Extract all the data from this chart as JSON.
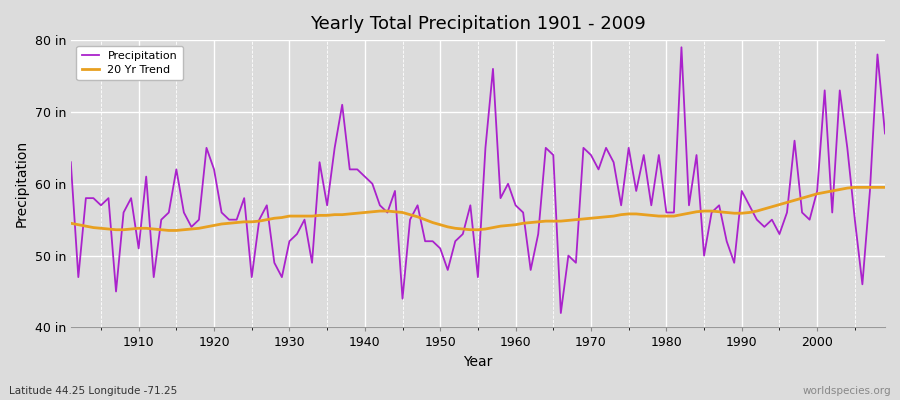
{
  "title": "Yearly Total Precipitation 1901 - 2009",
  "xlabel": "Year",
  "ylabel": "Precipitation",
  "subtitle": "Latitude 44.25 Longitude -71.25",
  "watermark": "worldspecies.org",
  "ylim": [
    40,
    80
  ],
  "yticks": [
    40,
    50,
    60,
    70,
    80
  ],
  "ytick_labels": [
    "40 in",
    "50 in",
    "60 in",
    "70 in",
    "80 in"
  ],
  "bg_color": "#dcdcdc",
  "precip_color": "#aa22cc",
  "trend_color": "#e8a020",
  "years": [
    1901,
    1902,
    1903,
    1904,
    1905,
    1906,
    1907,
    1908,
    1909,
    1910,
    1911,
    1912,
    1913,
    1914,
    1915,
    1916,
    1917,
    1918,
    1919,
    1920,
    1921,
    1922,
    1923,
    1924,
    1925,
    1926,
    1927,
    1928,
    1929,
    1930,
    1931,
    1932,
    1933,
    1934,
    1935,
    1936,
    1937,
    1938,
    1939,
    1940,
    1941,
    1942,
    1943,
    1944,
    1945,
    1946,
    1947,
    1948,
    1949,
    1950,
    1951,
    1952,
    1953,
    1954,
    1955,
    1956,
    1957,
    1958,
    1959,
    1960,
    1961,
    1962,
    1963,
    1964,
    1965,
    1966,
    1967,
    1968,
    1969,
    1970,
    1971,
    1972,
    1973,
    1974,
    1975,
    1976,
    1977,
    1978,
    1979,
    1980,
    1981,
    1982,
    1983,
    1984,
    1985,
    1986,
    1987,
    1988,
    1989,
    1990,
    1991,
    1992,
    1993,
    1994,
    1995,
    1996,
    1997,
    1998,
    1999,
    2000,
    2001,
    2002,
    2003,
    2004,
    2005,
    2006,
    2007,
    2008,
    2009
  ],
  "precip": [
    63,
    47,
    58,
    58,
    57,
    58,
    45,
    56,
    58,
    51,
    61,
    47,
    55,
    56,
    62,
    56,
    54,
    55,
    65,
    62,
    56,
    55,
    55,
    58,
    47,
    55,
    57,
    49,
    47,
    52,
    53,
    55,
    49,
    63,
    57,
    65,
    71,
    62,
    62,
    61,
    60,
    57,
    56,
    59,
    44,
    55,
    57,
    52,
    52,
    51,
    48,
    52,
    53,
    57,
    47,
    65,
    76,
    58,
    60,
    57,
    56,
    48,
    53,
    65,
    64,
    42,
    50,
    49,
    65,
    64,
    62,
    65,
    63,
    57,
    65,
    59,
    64,
    57,
    64,
    56,
    56,
    79,
    57,
    64,
    50,
    56,
    57,
    52,
    49,
    59,
    57,
    55,
    54,
    55,
    53,
    56,
    66,
    56,
    55,
    59,
    73,
    56,
    73,
    65,
    55,
    46,
    59,
    78,
    67
  ],
  "trend": [
    54.5,
    54.3,
    54.1,
    53.9,
    53.8,
    53.7,
    53.6,
    53.6,
    53.7,
    53.8,
    53.8,
    53.7,
    53.6,
    53.5,
    53.5,
    53.6,
    53.7,
    53.8,
    54.0,
    54.2,
    54.4,
    54.5,
    54.6,
    54.7,
    54.7,
    54.8,
    55.0,
    55.2,
    55.3,
    55.5,
    55.5,
    55.5,
    55.5,
    55.6,
    55.6,
    55.7,
    55.7,
    55.8,
    55.9,
    56.0,
    56.1,
    56.2,
    56.2,
    56.1,
    56.0,
    55.7,
    55.4,
    55.0,
    54.6,
    54.3,
    54.0,
    53.8,
    53.7,
    53.6,
    53.6,
    53.7,
    53.9,
    54.1,
    54.2,
    54.3,
    54.5,
    54.6,
    54.7,
    54.8,
    54.8,
    54.8,
    54.9,
    55.0,
    55.1,
    55.2,
    55.3,
    55.4,
    55.5,
    55.7,
    55.8,
    55.8,
    55.7,
    55.6,
    55.5,
    55.5,
    55.5,
    55.7,
    55.9,
    56.1,
    56.2,
    56.2,
    56.1,
    56.0,
    55.9,
    55.9,
    56.0,
    56.2,
    56.5,
    56.8,
    57.1,
    57.4,
    57.7,
    58.0,
    58.3,
    58.6,
    58.8,
    59.0,
    59.2,
    59.4,
    59.5,
    59.5,
    59.5,
    59.5,
    59.5
  ]
}
